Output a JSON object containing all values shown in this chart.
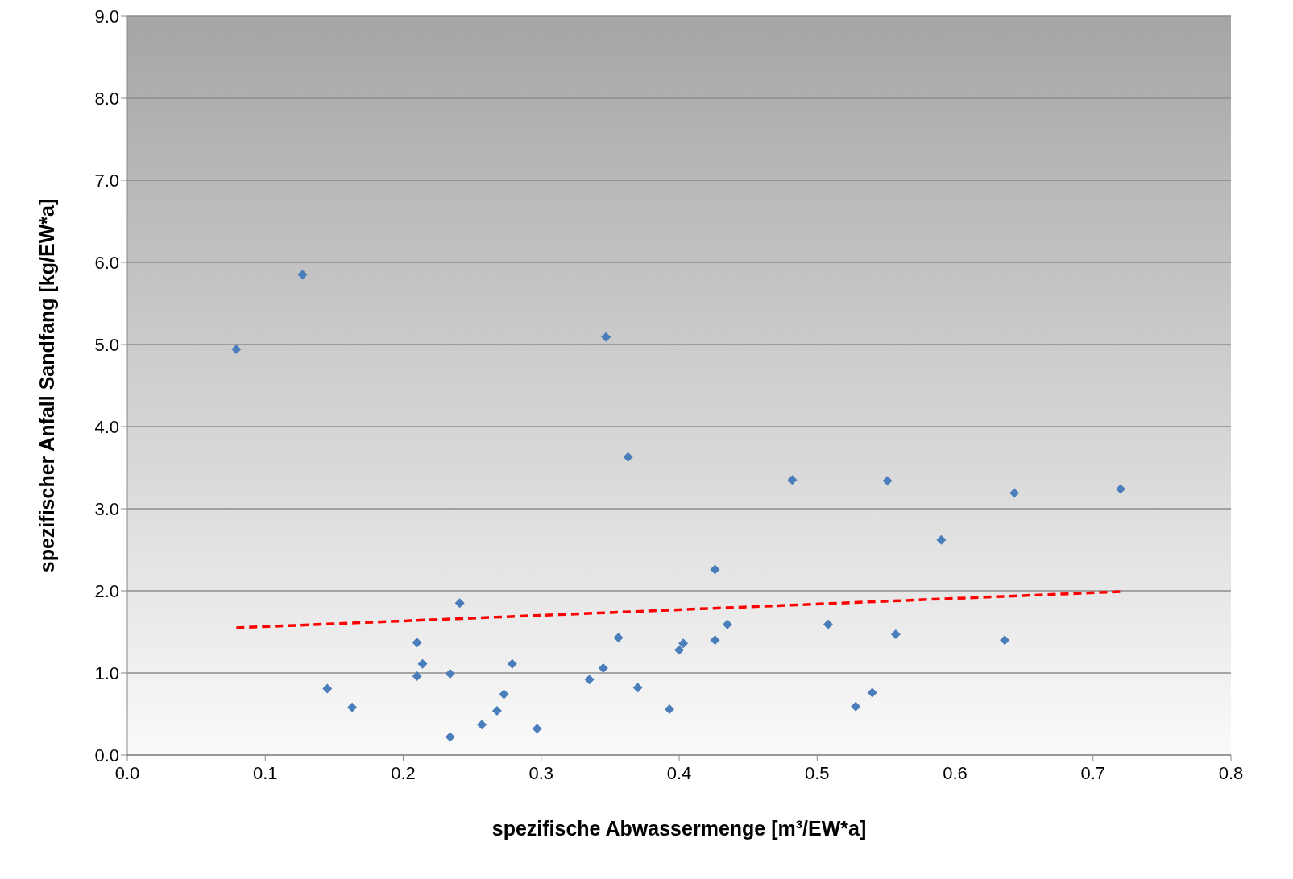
{
  "chart_data": {
    "type": "scatter",
    "xlabel": "spezifische Abwassermenge [m³/EW*a]",
    "ylabel": "spezifischer  Anfall  Sandfang  [kg/EW*a]",
    "xlim": [
      0,
      0.8
    ],
    "ylim": [
      0,
      9
    ],
    "xticks": [
      {
        "value": 0,
        "label": "0.0"
      },
      {
        "value": 0.1,
        "label": "0.1"
      },
      {
        "value": 0.2,
        "label": "0.2"
      },
      {
        "value": 0.3,
        "label": "0.3"
      },
      {
        "value": 0.4,
        "label": "0.4"
      },
      {
        "value": 0.5,
        "label": "0.5"
      },
      {
        "value": 0.6,
        "label": "0.6"
      },
      {
        "value": 0.7,
        "label": "0.7"
      },
      {
        "value": 0.8,
        "label": "0.8"
      }
    ],
    "yticks": [
      {
        "value": 0,
        "label": "0.0"
      },
      {
        "value": 1,
        "label": "1.0"
      },
      {
        "value": 2,
        "label": "2.0"
      },
      {
        "value": 3,
        "label": "3.0"
      },
      {
        "value": 4,
        "label": "4.0"
      },
      {
        "value": 5,
        "label": "5.0"
      },
      {
        "value": 6,
        "label": "6.0"
      },
      {
        "value": 7,
        "label": "7.0"
      },
      {
        "value": 8,
        "label": "8.0"
      },
      {
        "value": 9,
        "label": "9.0"
      }
    ],
    "grid": "y",
    "legend": false,
    "series": [
      {
        "type": "scatter",
        "color": "#4a7ebb",
        "marker": "diamond",
        "x": [
          0.079,
          0.127,
          0.145,
          0.163,
          0.21,
          0.21,
          0.214,
          0.234,
          0.234,
          0.241,
          0.257,
          0.268,
          0.273,
          0.279,
          0.297,
          0.335,
          0.345,
          0.347,
          0.356,
          0.363,
          0.37,
          0.393,
          0.4,
          0.403,
          0.426,
          0.426,
          0.435,
          0.482,
          0.508,
          0.528,
          0.54,
          0.551,
          0.557,
          0.59,
          0.636,
          0.643,
          0.72
        ],
        "values": [
          4.94,
          5.85,
          0.81,
          0.58,
          1.37,
          0.96,
          1.11,
          0.99,
          0.22,
          1.85,
          0.37,
          0.54,
          0.74,
          1.11,
          0.32,
          0.92,
          1.06,
          5.09,
          1.43,
          3.63,
          0.82,
          0.56,
          1.28,
          1.36,
          2.26,
          1.4,
          1.59,
          3.35,
          1.59,
          0.59,
          0.76,
          3.34,
          1.47,
          2.62,
          1.4,
          3.19,
          3.24
        ]
      },
      {
        "type": "line",
        "color": "#ff0000",
        "line_style": "dashed",
        "marker": "none",
        "x": [
          0.079,
          0.72
        ],
        "values": [
          1.55,
          1.99
        ]
      }
    ]
  }
}
